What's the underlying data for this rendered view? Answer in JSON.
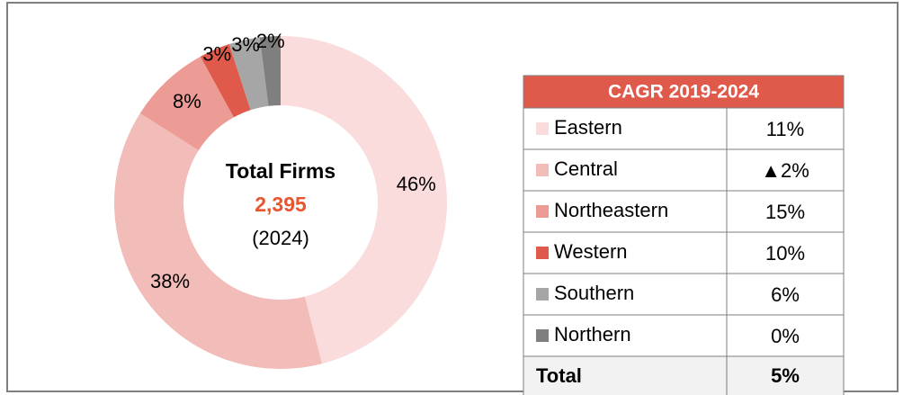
{
  "chart_data": {
    "type": "donut",
    "categories": [
      "Eastern",
      "Central",
      "Northeastern",
      "Western",
      "Southern",
      "Northern"
    ],
    "values": [
      46,
      38,
      8,
      3,
      3,
      2
    ],
    "value_labels": [
      "46%",
      "38%",
      "8%",
      "3%",
      "3%",
      "2%"
    ],
    "colors": [
      "#fadcdc",
      "#f2bcb8",
      "#ec9c94",
      "#e05a4b",
      "#a6a6a6",
      "#7f7f7f"
    ],
    "center": {
      "title": "Total Firms",
      "value": "2,395",
      "note": "(2024)"
    }
  },
  "table": {
    "header": "CAGR 2019-2024",
    "values": [
      "11%",
      "▲2%",
      "15%",
      "10%",
      "6%",
      "0%"
    ],
    "total": [
      "Total",
      "5%"
    ]
  }
}
